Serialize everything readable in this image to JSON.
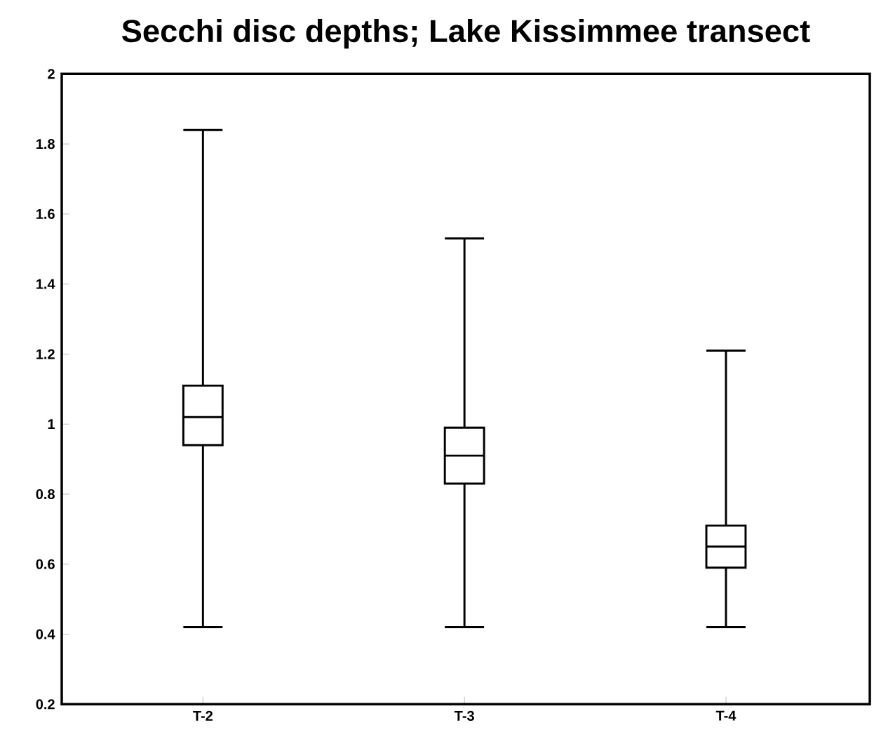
{
  "chart_data": {
    "type": "box",
    "title": "Secchi disc depths; Lake Kissimmee transect",
    "categories": [
      "T-2",
      "T-3",
      "T-4"
    ],
    "boxes": [
      {
        "low": 0.42,
        "q1": 0.94,
        "median": 1.02,
        "q3": 1.11,
        "high": 1.84
      },
      {
        "low": 0.42,
        "q1": 0.83,
        "median": 0.91,
        "q3": 0.99,
        "high": 1.53
      },
      {
        "low": 0.42,
        "q1": 0.59,
        "median": 0.65,
        "q3": 0.71,
        "high": 1.21
      }
    ],
    "ylim": [
      0.2,
      2
    ],
    "yticks": [
      0.2,
      0.4,
      0.6,
      0.8,
      1,
      1.2,
      1.4,
      1.6,
      1.8,
      2
    ],
    "grid": false
  }
}
